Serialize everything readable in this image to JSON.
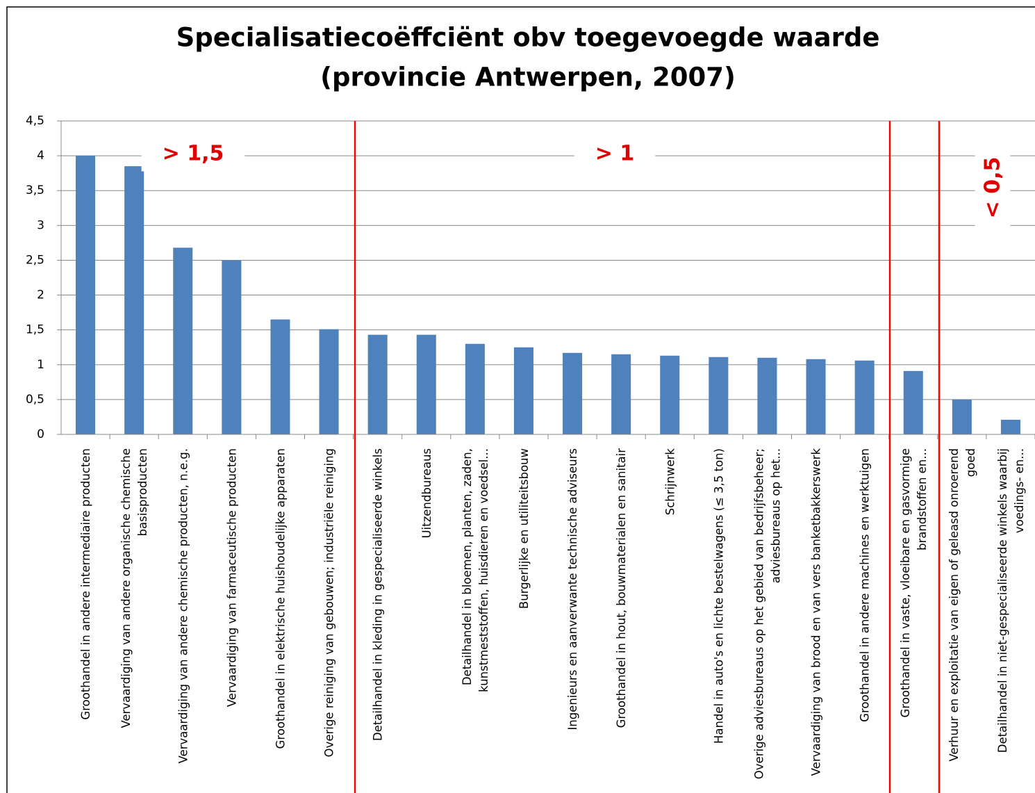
{
  "chart_data": {
    "type": "bar",
    "title": "Specialisatiecoëffciënt obv toegevoegde waarde",
    "subtitle": "(provincie Antwerpen, 2007)",
    "categories": [
      "Groothandel in andere intermediaire producten",
      "Vervaardiging van andere organische chemische basisproducten",
      "Vervaardiging van andere chemische producten, n.e.g.",
      "Vervaardiging van farmaceutische producten",
      "Groothandel in elektrische huishoudelijke apparaten",
      "Overige reiniging van gebouwen; industriële reiniging",
      "Detailhandel in kleding in gespecialiseerde winkels",
      "Uitzendbureaus",
      "Detailhandel in bloemen, planten, zaden, kunstmeststoffen, huisdieren en voedsel...",
      "Burgerlijke en utiliteitsbouw",
      "Ingenieurs en aanverwante technische adviseurs",
      "Groothandel in hout, bouwmaterialen en sanitair",
      "Schrijnwerk",
      "Handel in auto's en lichte bestelwagens (≤ 3,5 ton)",
      "Overige adviesbureaus op het gebied van bedrijfsbeheer; adviesbureaus op het...",
      "Vervaardiging van brood en van vers banketbakkerswerk",
      "Groothandel in andere machines en werktuigen",
      "Groothandel in vaste, vloeibare en gasvormige brandstoffen en...",
      "Verhuur en exploitatie van eigen of geleasd onroerend goed",
      "Detailhandel in niet-gespecialiseerde winkels waarbij voedings- en..."
    ],
    "values": [
      4.0,
      3.85,
      2.68,
      2.5,
      1.65,
      1.51,
      1.43,
      1.43,
      1.3,
      1.25,
      1.17,
      1.15,
      1.13,
      1.11,
      1.1,
      1.08,
      1.06,
      0.91,
      0.5,
      0.21
    ],
    "color": "#4f81bd",
    "ylim": [
      0,
      4.5
    ],
    "yticks": [
      0,
      {
        "value": 0.5,
        "label": "0,5"
      },
      1,
      {
        "value": 1.5,
        "label": "1,5"
      },
      2,
      {
        "value": 2.5,
        "label": "2,5"
      },
      3,
      {
        "value": 3.5,
        "label": "3,5"
      },
      4,
      {
        "value": 4.5,
        "label": "4,5"
      }
    ],
    "grid": true,
    "annotations": [
      "> 1,5",
      "> 1",
      "< 0,5"
    ]
  }
}
